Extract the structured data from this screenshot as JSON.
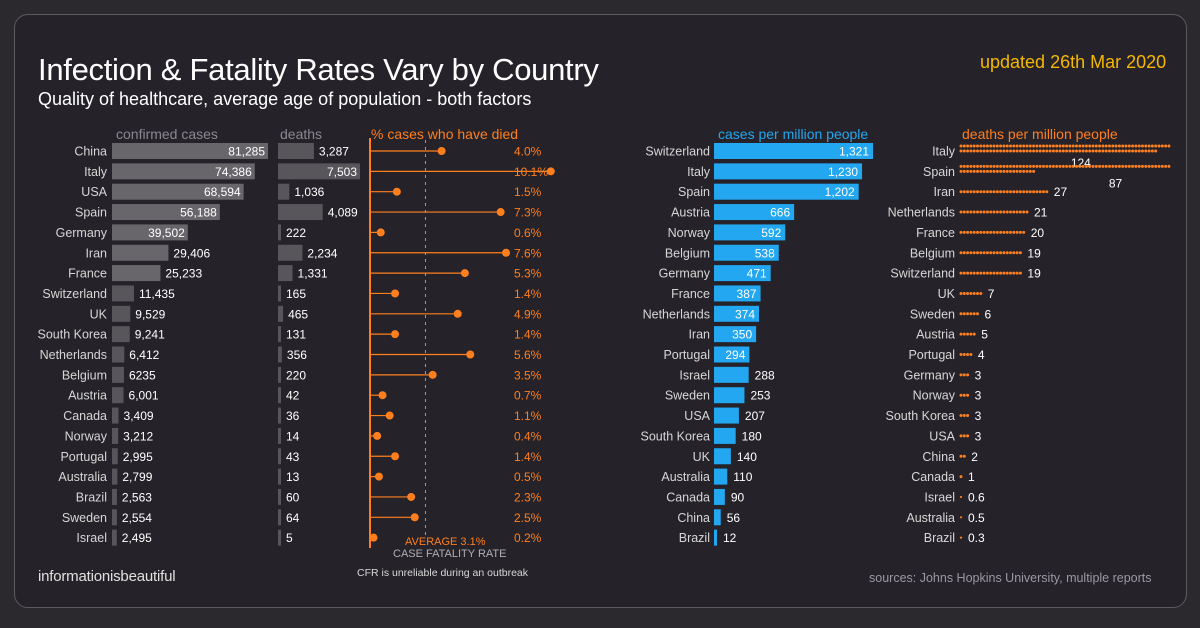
{
  "header": {
    "title": "Infection & Fatality Rates Vary by Country",
    "subtitle": "Quality of healthcare, average age of population - both factors",
    "updated": "updated 26th Mar 2020"
  },
  "footer": {
    "brand": "informationisbeautiful",
    "sources": "sources: Johns Hopkins University, multiple reports",
    "cfr_note": "CFR is unreliable during an outbreak"
  },
  "colors": {
    "background": "#2b292e",
    "panel": "#252329",
    "bar_grey": "#58565b",
    "bar_grey_light": "#68666b",
    "orange": "#ff7f1e",
    "blue": "#22a7f0",
    "gold": "#f5b800"
  },
  "chart_data": [
    {
      "type": "bar",
      "title": "confirmed cases",
      "categories": [
        "China",
        "Italy",
        "USA",
        "Spain",
        "Germany",
        "Iran",
        "France",
        "Switzerland",
        "UK",
        "South Korea",
        "Netherlands",
        "Belgium",
        "Austria",
        "Canada",
        "Norway",
        "Portugal",
        "Australia",
        "Brazil",
        "Sweden",
        "Israel"
      ],
      "values": [
        81285,
        74386,
        68594,
        56188,
        39502,
        29406,
        25233,
        11435,
        9529,
        9241,
        6412,
        6235,
        6001,
        3409,
        3212,
        2995,
        2799,
        2563,
        2554,
        2495
      ],
      "labels": [
        "81,285",
        "74,386",
        "68,594",
        "56,188",
        "39,502",
        "29,406",
        "25,233",
        "11,435",
        "9,529",
        "9,241",
        "6,412",
        "6235",
        "6,001",
        "3,409",
        "3,212",
        "2,995",
        "2,799",
        "2,563",
        "2,554",
        "2,495"
      ]
    },
    {
      "type": "bar",
      "title": "deaths",
      "categories": [
        "China",
        "Italy",
        "USA",
        "Spain",
        "Germany",
        "Iran",
        "France",
        "Switzerland",
        "UK",
        "South Korea",
        "Netherlands",
        "Belgium",
        "Austria",
        "Canada",
        "Norway",
        "Portugal",
        "Australia",
        "Brazil",
        "Sweden",
        "Israel"
      ],
      "values": [
        3287,
        7503,
        1036,
        4089,
        222,
        2234,
        1331,
        165,
        465,
        131,
        356,
        220,
        42,
        36,
        14,
        43,
        13,
        60,
        64,
        5
      ],
      "labels": [
        "3,287",
        "7,503",
        "1,036",
        "4,089",
        "222",
        "2,234",
        "1,331",
        "165",
        "465",
        "131",
        "356",
        "220",
        "42",
        "36",
        "14",
        "43",
        "13",
        "60",
        "64",
        "5"
      ]
    },
    {
      "type": "scatter",
      "title": "% cases who have died",
      "categories": [
        "China",
        "Italy",
        "USA",
        "Spain",
        "Germany",
        "Iran",
        "France",
        "Switzerland",
        "UK",
        "South Korea",
        "Netherlands",
        "Belgium",
        "Austria",
        "Canada",
        "Norway",
        "Portugal",
        "Australia",
        "Brazil",
        "Sweden",
        "Israel"
      ],
      "values": [
        4.0,
        10.1,
        1.5,
        7.3,
        0.6,
        7.6,
        5.3,
        1.4,
        4.9,
        1.4,
        5.6,
        3.5,
        0.7,
        1.1,
        0.4,
        1.4,
        0.5,
        2.3,
        2.5,
        0.2
      ],
      "labels": [
        "4.0%",
        "10.1%",
        "1.5%",
        "7.3%",
        "0.6%",
        "7.6%",
        "5.3%",
        "1.4%",
        "4.9%",
        "1.4%",
        "5.6%",
        "3.5%",
        "0.7%",
        "1.1%",
        "0.4%",
        "1.4%",
        "0.5%",
        "2.3%",
        "2.5%",
        "0.2%"
      ],
      "average_label": "AVERAGE 3.1%",
      "average_sub": "CASE  FATALITY RATE",
      "average": 3.1
    },
    {
      "type": "bar",
      "title": "cases per million people",
      "categories": [
        "Switzerland",
        "Italy",
        "Spain",
        "Austria",
        "Norway",
        "Belgium",
        "Germany",
        "France",
        "Netherlands",
        "Iran",
        "Portugal",
        "Israel",
        "Sweden",
        "USA",
        "South Korea",
        "UK",
        "Australia",
        "Canada",
        "China",
        "Brazil"
      ],
      "values": [
        1321,
        1230,
        1202,
        666,
        592,
        538,
        471,
        387,
        374,
        350,
        294,
        288,
        253,
        207,
        180,
        140,
        110,
        90,
        56,
        12
      ],
      "labels": [
        "1,321",
        "1,230",
        "1,202",
        "666",
        "592",
        "538",
        "471",
        "387",
        "374",
        "350",
        "294",
        "288",
        "253",
        "207",
        "180",
        "140",
        "110",
        "90",
        "56",
        "12"
      ]
    },
    {
      "type": "bar",
      "title": "deaths per million people",
      "categories": [
        "Italy",
        "Spain",
        "Iran",
        "Netherlands",
        "France",
        "Belgium",
        "Switzerland",
        "UK",
        "Sweden",
        "Austria",
        "Portugal",
        "Germany",
        "Norway",
        "South Korea",
        "USA",
        "China",
        "Canada",
        "Israel",
        "Australia",
        "Brazil"
      ],
      "values": [
        124,
        87,
        27,
        21,
        20,
        19,
        19,
        7,
        6,
        5,
        4,
        3,
        3,
        3,
        3,
        2,
        1,
        0.6,
        0.5,
        0.3
      ],
      "labels": [
        "124",
        "87",
        "27",
        "21",
        "20",
        "19",
        "19",
        "7",
        "6",
        "5",
        "4",
        "3",
        "3",
        "3",
        "3",
        "2",
        "1",
        "0.6",
        "0.5",
        "0.3"
      ]
    }
  ]
}
